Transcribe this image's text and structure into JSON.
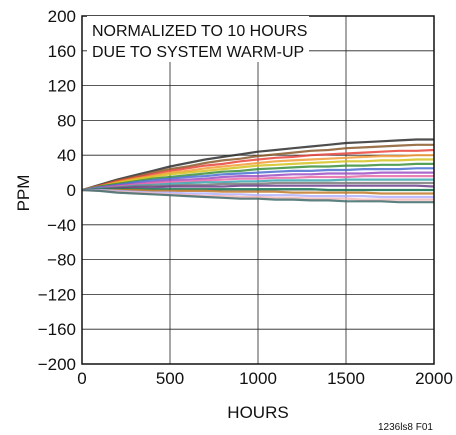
{
  "chart_data": {
    "type": "line",
    "title": "",
    "xlabel": "HOURS",
    "ylabel": "PPM",
    "xlim": [
      0,
      2000
    ],
    "ylim": [
      -200,
      200
    ],
    "x_ticks": [
      "0",
      "500",
      "1000",
      "1500",
      "2000"
    ],
    "y_ticks": [
      "200",
      "160",
      "120",
      "80",
      "40",
      "0",
      "−40",
      "−80",
      "−120",
      "−160",
      "−200"
    ],
    "grid": true,
    "annotation": [
      "NORMALIZED TO 10 HOURS",
      "DUE TO SYSTEM WARM-UP"
    ],
    "figure_id": "1236ls8 F01",
    "x": [
      0,
      100,
      200,
      300,
      400,
      500,
      600,
      700,
      800,
      900,
      1000,
      1100,
      1200,
      1300,
      1400,
      1500,
      1600,
      1700,
      1800,
      1900,
      2000
    ],
    "series": [
      {
        "color": "#2f2f2f",
        "values": [
          0,
          6,
          12,
          17,
          22,
          27,
          31,
          35,
          38,
          41,
          44,
          46,
          48,
          50,
          52,
          54,
          55,
          56,
          57,
          58,
          58
        ]
      },
      {
        "color": "#8b5a2b",
        "values": [
          0,
          5,
          11,
          15,
          20,
          24,
          27,
          31,
          34,
          36,
          39,
          41,
          43,
          45,
          46,
          48,
          49,
          50,
          51,
          52,
          52
        ]
      },
      {
        "color": "#e8453c",
        "values": [
          0,
          5,
          10,
          14,
          18,
          22,
          25,
          28,
          30,
          33,
          35,
          37,
          38,
          40,
          41,
          42,
          43,
          44,
          45,
          45,
          46
        ]
      },
      {
        "color": "#f29c38",
        "values": [
          0,
          4,
          9,
          13,
          16,
          20,
          22,
          25,
          27,
          29,
          31,
          33,
          34,
          35,
          36,
          37,
          38,
          39,
          39,
          40,
          40
        ]
      },
      {
        "color": "#d4c21e",
        "values": [
          0,
          4,
          8,
          12,
          15,
          18,
          20,
          22,
          24,
          26,
          28,
          29,
          30,
          31,
          32,
          33,
          33,
          34,
          34,
          35,
          35
        ]
      },
      {
        "color": "#3a8f3a",
        "values": [
          0,
          4,
          7,
          10,
          13,
          15,
          17,
          19,
          21,
          22,
          24,
          25,
          26,
          27,
          27,
          28,
          28,
          29,
          29,
          30,
          30
        ]
      },
      {
        "color": "#4a6fd1",
        "values": [
          0,
          3,
          6,
          9,
          11,
          13,
          15,
          16,
          18,
          19,
          20,
          21,
          22,
          22,
          23,
          23,
          24,
          24,
          24,
          25,
          25
        ]
      },
      {
        "color": "#9c4fc4",
        "values": [
          0,
          3,
          5,
          7,
          9,
          11,
          12,
          13,
          15,
          16,
          16,
          17,
          18,
          18,
          19,
          19,
          19,
          20,
          20,
          20,
          20
        ]
      },
      {
        "color": "#e86aa8",
        "values": [
          0,
          2,
          4,
          6,
          8,
          9,
          10,
          11,
          12,
          13,
          13,
          14,
          14,
          15,
          15,
          15,
          16,
          16,
          16,
          16,
          16
        ]
      },
      {
        "color": "#3aa6b0",
        "values": [
          0,
          2,
          3,
          5,
          6,
          7,
          8,
          9,
          9,
          10,
          10,
          11,
          11,
          11,
          11,
          12,
          12,
          12,
          12,
          12,
          12
        ]
      },
      {
        "color": "#7a7a7a",
        "values": [
          0,
          1,
          3,
          4,
          5,
          5,
          6,
          6,
          7,
          7,
          7,
          8,
          8,
          8,
          8,
          8,
          8,
          8,
          8,
          8,
          8
        ]
      },
      {
        "color": "#6b3d8a",
        "values": [
          0,
          1,
          2,
          3,
          3,
          4,
          4,
          4,
          4,
          5,
          5,
          5,
          5,
          5,
          5,
          5,
          5,
          5,
          5,
          5,
          4
        ]
      },
      {
        "color": "#1c7a5c",
        "values": [
          0,
          1,
          1,
          1,
          1,
          1,
          1,
          1,
          1,
          1,
          1,
          1,
          1,
          1,
          0,
          0,
          0,
          0,
          0,
          0,
          0
        ]
      },
      {
        "color": "#c27a2a",
        "values": [
          0,
          0,
          0,
          0,
          -1,
          -1,
          -1,
          -1,
          -2,
          -2,
          -2,
          -2,
          -3,
          -3,
          -3,
          -3,
          -3,
          -4,
          -4,
          -4,
          -4
        ]
      },
      {
        "color": "#b0b0ff",
        "values": [
          0,
          0,
          -1,
          -2,
          -3,
          -3,
          -4,
          -4,
          -5,
          -5,
          -6,
          -6,
          -6,
          -7,
          -7,
          -7,
          -7,
          -8,
          -8,
          -8,
          -8
        ]
      },
      {
        "color": "#f5b8b8",
        "values": [
          0,
          -1,
          -2,
          -3,
          -4,
          -5,
          -6,
          -7,
          -7,
          -8,
          -8,
          -9,
          -9,
          -10,
          -10,
          -10,
          -11,
          -11,
          -11,
          -11,
          -11
        ]
      },
      {
        "color": "#3f6b6b",
        "values": [
          0,
          -1,
          -3,
          -4,
          -5,
          -6,
          -7,
          -8,
          -9,
          -10,
          -10,
          -11,
          -11,
          -12,
          -12,
          -13,
          -13,
          -13,
          -14,
          -14,
          -14
        ]
      }
    ]
  }
}
